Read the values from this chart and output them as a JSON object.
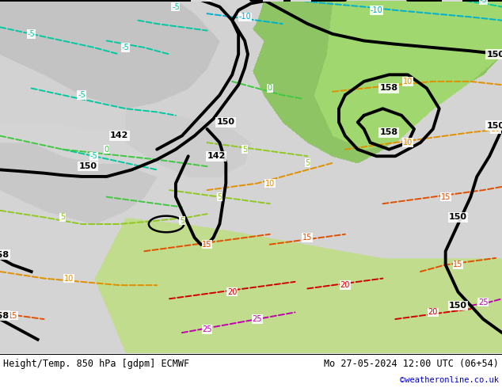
{
  "title_left": "Height/Temp. 850 hPa [gdpm] ECMWF",
  "title_right": "Mo 27-05-2024 12:00 UTC (06+54)",
  "credit": "©weatheronline.co.uk",
  "credit_color": "#0000cc",
  "bg_light_gray": "#d4d4d4",
  "bg_dark_gray": "#b8b8b8",
  "green_warm": "#8ec86a",
  "green_light": "#b0d878",
  "white_area": "#e8e8e8",
  "figsize": [
    6.34,
    4.9
  ],
  "dpi": 100
}
